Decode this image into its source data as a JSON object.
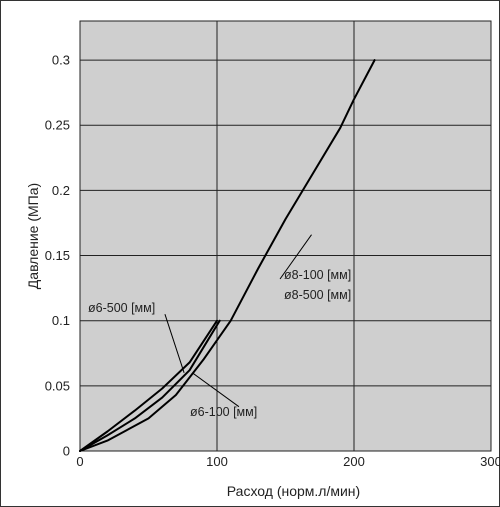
{
  "chart_data": {
    "type": "line",
    "xlabel": "Расход (норм.л/мин)",
    "ylabel": "Давление (МПа)",
    "xlim": [
      0,
      300
    ],
    "ylim": [
      0,
      0.33
    ],
    "x_ticks": [
      "0",
      "100",
      "200",
      "300"
    ],
    "y_ticks": [
      "0",
      "0.05",
      "0.1",
      "0.15",
      "0.2",
      "0.25",
      "0.3"
    ],
    "grid": true,
    "plot_background": "#cfcfcf",
    "line_color": "#000000",
    "series": [
      {
        "points": [
          [
            0,
            0
          ],
          [
            20,
            0.015
          ],
          [
            40,
            0.031
          ],
          [
            60,
            0.048
          ],
          [
            80,
            0.068
          ],
          [
            100,
            0.1
          ]
        ]
      },
      {
        "points": [
          [
            0,
            0
          ],
          [
            20,
            0.012
          ],
          [
            40,
            0.025
          ],
          [
            60,
            0.041
          ],
          [
            80,
            0.062
          ],
          [
            102,
            0.1
          ]
        ]
      },
      {
        "points": [
          [
            0,
            0
          ],
          [
            20,
            0.008
          ],
          [
            50,
            0.025
          ],
          [
            70,
            0.043
          ],
          [
            90,
            0.07
          ],
          [
            110,
            0.1
          ],
          [
            130,
            0.14
          ],
          [
            150,
            0.178
          ],
          [
            170,
            0.213
          ],
          [
            190,
            0.248
          ],
          [
            200,
            0.27
          ],
          [
            215,
            0.3
          ]
        ]
      }
    ],
    "annotations": {
      "a1": "ø6-500 [мм]",
      "a2": "ø6-100 [мм]",
      "a3": "ø8-100 [мм]",
      "a4": "ø8-500 [мм]"
    }
  }
}
